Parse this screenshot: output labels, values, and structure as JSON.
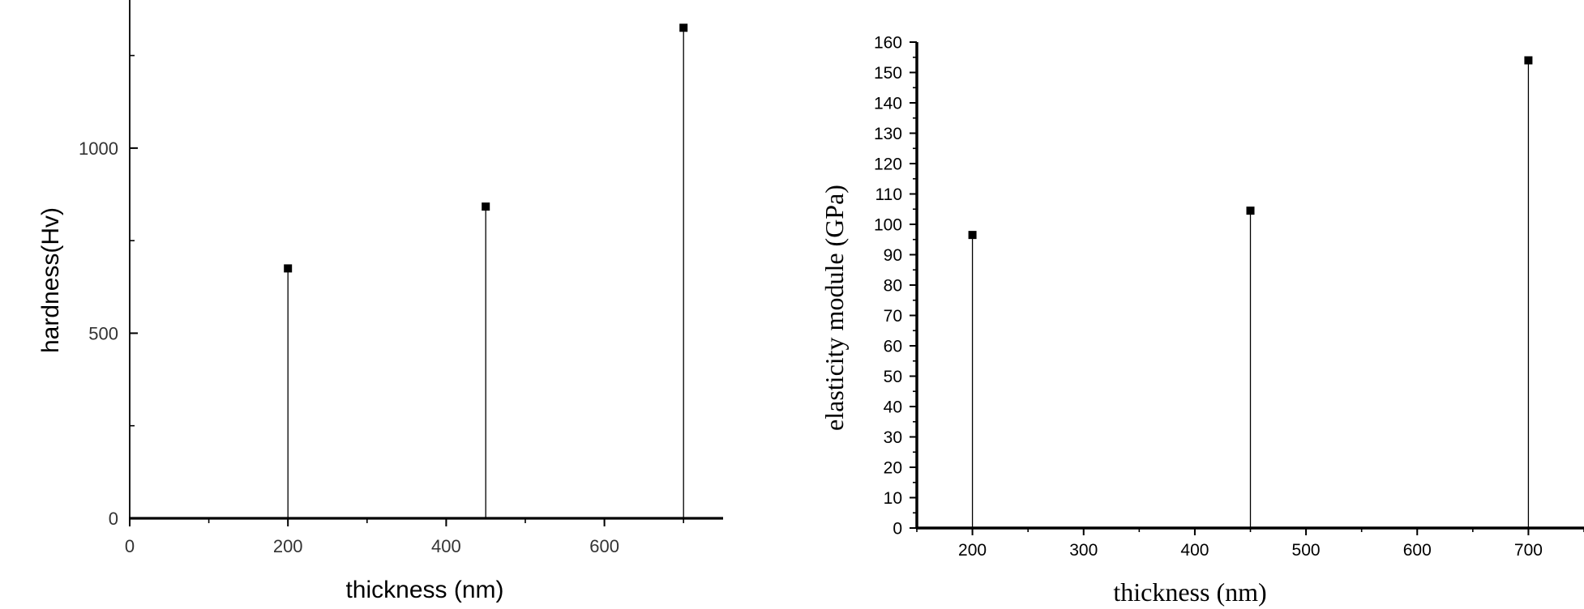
{
  "chart_data": [
    {
      "type": "scatter",
      "style": "drop-lines",
      "title": "",
      "xlabel": "thickness (nm)",
      "ylabel": "hardness(Hv)",
      "xlim": [
        0,
        750
      ],
      "ylim": [
        0,
        1400
      ],
      "x_ticks": [
        0,
        200,
        400,
        600
      ],
      "y_ticks": [
        0,
        500,
        1000
      ],
      "x_tick_labels": [
        "0",
        "200",
        "400",
        "600"
      ],
      "y_tick_labels": [
        "0",
        "500",
        "1000"
      ],
      "grid": false,
      "legend": "none",
      "series": [
        {
          "x": [
            200,
            450,
            700
          ],
          "y": [
            675,
            842,
            1325
          ],
          "color": "#000000",
          "marker": "square"
        }
      ]
    },
    {
      "type": "scatter",
      "style": "drop-lines",
      "title": "",
      "xlabel": "thickness (nm)",
      "ylabel": "elasticity module (GPa)",
      "xlim": [
        150,
        750
      ],
      "ylim": [
        0,
        160
      ],
      "x_ticks": [
        200,
        300,
        400,
        500,
        600,
        700
      ],
      "y_ticks": [
        0,
        10,
        20,
        30,
        40,
        50,
        60,
        70,
        80,
        90,
        100,
        110,
        120,
        130,
        140,
        150,
        160
      ],
      "x_tick_labels": [
        "200",
        "300",
        "400",
        "500",
        "600",
        "700"
      ],
      "y_tick_labels": [
        "0",
        "10",
        "20",
        "30",
        "40",
        "50",
        "60",
        "70",
        "80",
        "90",
        "100",
        "110",
        "120",
        "130",
        "140",
        "150",
        "160"
      ],
      "grid": false,
      "legend": "none",
      "series": [
        {
          "x": [
            200,
            450,
            700
          ],
          "y": [
            96.5,
            104.5,
            154
          ],
          "color": "#000000",
          "marker": "square"
        }
      ]
    }
  ]
}
